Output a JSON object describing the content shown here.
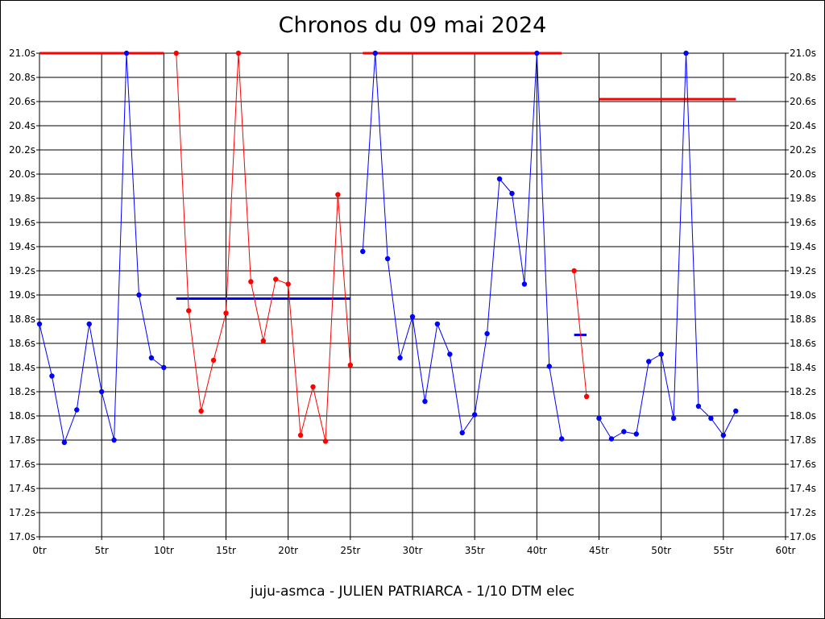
{
  "chart_data": {
    "type": "line",
    "title": "Chronos du 09 mai 2024",
    "caption": "juju-asmca - JULIEN PATRIARCA - 1/10 DTM elec",
    "xlim": [
      0,
      60
    ],
    "ylim": [
      17.0,
      21.0
    ],
    "x_ticks": [
      0,
      5,
      10,
      15,
      20,
      25,
      30,
      35,
      40,
      45,
      50,
      55,
      60
    ],
    "x_tick_labels": [
      "0tr",
      "5tr",
      "10tr",
      "15tr",
      "20tr",
      "25tr",
      "30tr",
      "35tr",
      "40tr",
      "45tr",
      "50tr",
      "55tr",
      "60tr"
    ],
    "y_ticks": [
      17.0,
      17.2,
      17.4,
      17.6,
      17.8,
      18.0,
      18.2,
      18.4,
      18.6,
      18.8,
      19.0,
      19.2,
      19.4,
      19.6,
      19.8,
      20.0,
      20.2,
      20.4,
      20.6,
      20.8,
      21.0
    ],
    "y_tick_labels": [
      "17.0s",
      "17.2s",
      "17.4s",
      "17.6s",
      "17.8s",
      "18.0s",
      "18.2s",
      "18.4s",
      "18.6s",
      "18.8s",
      "19.0s",
      "19.2s",
      "19.4s",
      "19.6s",
      "19.8s",
      "20.0s",
      "20.2s",
      "20.4s",
      "20.6s",
      "20.8s",
      "21.0s"
    ],
    "grid": true,
    "series": [
      {
        "color": "#0000ff",
        "x": [
          0,
          1,
          2,
          3,
          4,
          5,
          6,
          7,
          8,
          9,
          10
        ],
        "y": [
          18.76,
          18.33,
          17.78,
          18.05,
          18.76,
          18.2,
          17.8,
          21.0,
          19.0,
          18.48,
          18.4
        ]
      },
      {
        "color": "#ff0000",
        "x": [
          11,
          12,
          13,
          14,
          15,
          16,
          17,
          18,
          19,
          20,
          21,
          22,
          23,
          24,
          25
        ],
        "y": [
          21.0,
          18.87,
          18.04,
          18.46,
          18.85,
          21.0,
          19.11,
          18.62,
          19.13,
          19.09,
          17.84,
          18.24,
          17.79,
          19.83,
          18.42
        ]
      },
      {
        "color": "#0000ff",
        "x": [
          26,
          27,
          28,
          29,
          30,
          31,
          32,
          33,
          34,
          35,
          36,
          37,
          38,
          39,
          40,
          41,
          42
        ],
        "y": [
          19.36,
          21.0,
          19.3,
          18.48,
          18.82,
          18.12,
          18.76,
          18.51,
          17.86,
          18.01,
          18.68,
          19.96,
          19.84,
          19.09,
          21.0,
          18.41,
          17.81
        ]
      },
      {
        "color": "#ff0000",
        "x": [
          43,
          44
        ],
        "y": [
          19.2,
          18.16
        ]
      },
      {
        "color": "#0000ff",
        "x": [
          45,
          46,
          47,
          48,
          49,
          50,
          51,
          52,
          53,
          54,
          55,
          56
        ],
        "y": [
          17.98,
          17.81,
          17.87,
          17.85,
          18.45,
          18.51,
          17.98,
          21.0,
          18.08,
          17.98,
          17.84,
          18.04
        ]
      }
    ],
    "reference_lines": [
      {
        "color": "#ff0000",
        "x": [
          0,
          10
        ],
        "y": 21.0
      },
      {
        "color": "#0000ff",
        "x": [
          11,
          25
        ],
        "y": 18.97
      },
      {
        "color": "#ff0000",
        "x": [
          26,
          42
        ],
        "y": 21.0
      },
      {
        "color": "#0000ff",
        "x": [
          43,
          44
        ],
        "y": 18.67
      },
      {
        "color": "#ff0000",
        "x": [
          45,
          56
        ],
        "y": 20.62
      }
    ]
  }
}
